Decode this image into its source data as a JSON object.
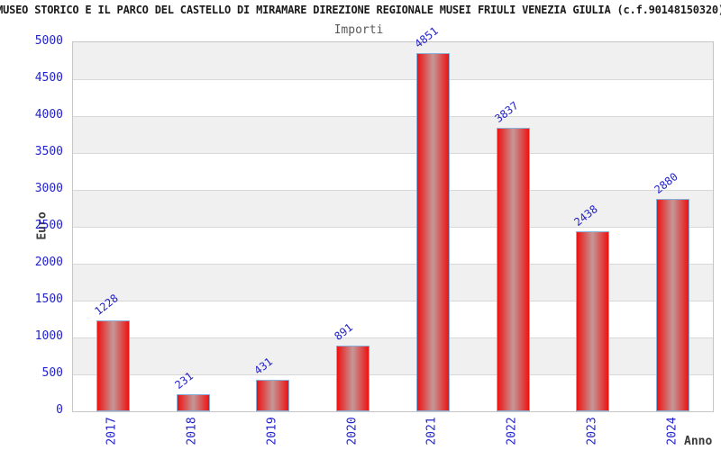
{
  "header": {
    "title": "MUSEO STORICO E IL PARCO DEL CASTELLO DI MIRAMARE DIREZIONE REGIONALE MUSEI FRIULI VENEZIA GIULIA (c.f.90148150320)",
    "subtitle": "Importi"
  },
  "chart_data": {
    "type": "bar",
    "title": "MUSEO STORICO E IL PARCO DEL CASTELLO DI MIRAMARE DIREZIONE REGIONALE MUSEI FRIULI VENEZIA GIULIA (c.f.90148150320)",
    "subtitle": "Importi",
    "xlabel": "Anno",
    "ylabel": "Euro",
    "categories": [
      "2017",
      "2018",
      "2019",
      "2020",
      "2021",
      "2022",
      "2023",
      "2024"
    ],
    "values": [
      1228,
      231,
      431,
      891,
      4851,
      3837,
      2438,
      2880
    ],
    "ylim": [
      0,
      5000
    ],
    "ytick_step": 500,
    "yticks": [
      0,
      500,
      1000,
      1500,
      2000,
      2500,
      3000,
      3500,
      4000,
      4500,
      5000
    ],
    "grid": "horizontal gridlines every 500 with alternating gray/white bands, gray band at top (4500-5000)",
    "legend": "none",
    "bar_labels_rotation_deg": -38,
    "x_labels_rotation_deg": -90,
    "colors": {
      "bar_edge": "#ee1212",
      "bar_center": "#c59898",
      "bar_border": "#88b0d8",
      "label_blue": "#2323cb",
      "band_gray": "#f0f0f0",
      "gridline": "#d8d8d8",
      "plot_border": "#c6c6c6",
      "title_text": "#1a1a1a",
      "subtitle_text": "#5a5a5a",
      "axis_title_text": "#3a3a3a"
    }
  }
}
